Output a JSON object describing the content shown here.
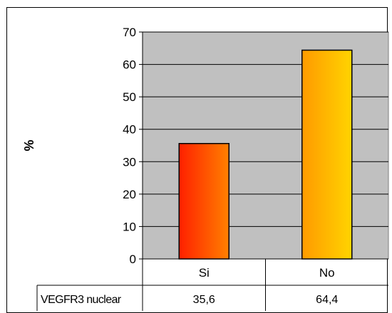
{
  "chart_data": {
    "type": "bar",
    "categories": [
      "Si",
      "No"
    ],
    "series": [
      {
        "name": "VEGFR3 nuclear",
        "values": [
          35.6,
          64.4
        ]
      }
    ],
    "table_values": [
      "35,6",
      "64,4"
    ],
    "title": "",
    "xlabel": "",
    "ylabel": "%",
    "ylim": [
      0,
      70
    ],
    "yticks": [
      "0",
      "10",
      "20",
      "30",
      "40",
      "50",
      "60",
      "70"
    ],
    "grid": true,
    "legend": "none",
    "plot_background": "#c0c0c0",
    "bar_colors": [
      {
        "start": "#ff2000",
        "end": "#ff8000"
      },
      {
        "start": "#ff9a00",
        "end": "#ffd400"
      }
    ]
  }
}
